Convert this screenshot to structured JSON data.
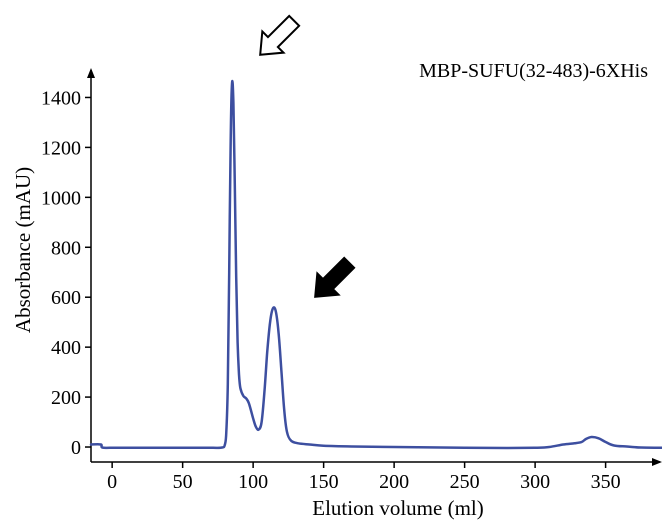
{
  "chart_data": {
    "type": "line",
    "title": "MBP-SUFU(32-483)-6XHis",
    "xlabel": "Elution volume (ml)",
    "ylabel": "Absorbance (mAU)",
    "xlim": [
      -15,
      390
    ],
    "ylim": [
      -60,
      1510
    ],
    "x_ticks": [
      0,
      50,
      100,
      150,
      200,
      250,
      300,
      350
    ],
    "y_ticks": [
      0,
      200,
      400,
      600,
      800,
      1000,
      1200,
      1400
    ],
    "grid": false,
    "legend": "none",
    "series": [
      {
        "color": "#3d4fa0",
        "points": [
          [
            -15,
            10
          ],
          [
            -8,
            10
          ],
          [
            -7,
            -2
          ],
          [
            0,
            -3
          ],
          [
            20,
            -3
          ],
          [
            50,
            -3
          ],
          [
            70,
            -3
          ],
          [
            78,
            -2
          ],
          [
            80,
            10
          ],
          [
            81,
            60
          ],
          [
            82,
            250
          ],
          [
            83,
            700
          ],
          [
            84,
            1200
          ],
          [
            85,
            1455
          ],
          [
            86,
            1380
          ],
          [
            87,
            1050
          ],
          [
            88,
            680
          ],
          [
            89,
            420
          ],
          [
            90,
            290
          ],
          [
            91,
            235
          ],
          [
            93,
            205
          ],
          [
            95,
            195
          ],
          [
            97,
            175
          ],
          [
            100,
            115
          ],
          [
            102,
            80
          ],
          [
            104,
            70
          ],
          [
            106,
            100
          ],
          [
            108,
            220
          ],
          [
            110,
            380
          ],
          [
            112,
            500
          ],
          [
            114,
            555
          ],
          [
            116,
            545
          ],
          [
            118,
            460
          ],
          [
            120,
            310
          ],
          [
            122,
            150
          ],
          [
            124,
            60
          ],
          [
            127,
            25
          ],
          [
            132,
            15
          ],
          [
            140,
            10
          ],
          [
            150,
            5
          ],
          [
            170,
            2
          ],
          [
            200,
            0
          ],
          [
            250,
            -3
          ],
          [
            280,
            -4
          ],
          [
            300,
            -3
          ],
          [
            310,
            0
          ],
          [
            320,
            10
          ],
          [
            328,
            15
          ],
          [
            333,
            20
          ],
          [
            336,
            32
          ],
          [
            340,
            40
          ],
          [
            345,
            35
          ],
          [
            350,
            20
          ],
          [
            356,
            6
          ],
          [
            365,
            2
          ],
          [
            375,
            -2
          ],
          [
            390,
            -3
          ]
        ]
      }
    ],
    "annotations": [
      {
        "type": "arrow",
        "style": "outline",
        "target": "peak at ~85 ml"
      },
      {
        "type": "arrow",
        "style": "filled",
        "target": "peak at ~114 ml"
      }
    ]
  }
}
